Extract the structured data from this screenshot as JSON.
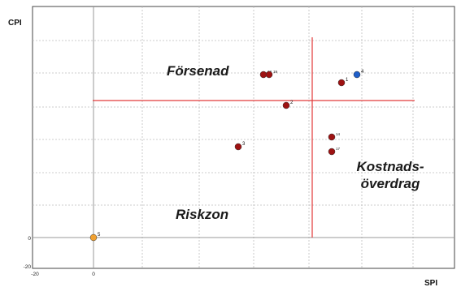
{
  "chart_data": {
    "type": "scatter",
    "xlabel": "SPI",
    "ylabel": "CPI",
    "x_ticks": [
      "-20",
      "0"
    ],
    "y_ticks": [
      "0",
      "-20"
    ],
    "xlim": [
      -20,
      80
    ],
    "ylim": [
      -20,
      65
    ],
    "grid": true,
    "reference_lines": {
      "x": 54,
      "y": 42
    },
    "zones": [
      {
        "label": "Försenad",
        "lines": [
          "Försenad"
        ]
      },
      {
        "label": "Kostnads-överdrag",
        "lines": [
          "Kostnads-",
          "överdrag"
        ]
      },
      {
        "label": "Riskzon",
        "lines": [
          "Riskzon"
        ]
      }
    ],
    "points": [
      {
        "label": "1",
        "x": 62,
        "y": 48,
        "color": "#9e1212"
      },
      {
        "label": "2",
        "x": 48,
        "y": 41,
        "color": "#9e1212"
      },
      {
        "label": "3",
        "x": 36,
        "y": 28,
        "color": "#9e1212"
      },
      {
        "label": "4",
        "x": 66,
        "y": 50.5,
        "color": "#1f5fc9"
      },
      {
        "label": "5",
        "x": 0,
        "y": 0,
        "color": "#f0a030"
      },
      {
        "label": "14",
        "x": 59,
        "y": 31,
        "color": "#9e1212"
      },
      {
        "label": "17",
        "x": 59,
        "y": 26.5,
        "color": "#9e1212"
      },
      {
        "label": "18",
        "x": 42,
        "y": 50,
        "color": "#9e1212"
      },
      {
        "label": "19",
        "x": 43.5,
        "y": 50,
        "color": "#9e1212"
      }
    ],
    "colors": {
      "frame": "#444444",
      "grid": "#bdbdbd",
      "reference": "#e23a3a"
    }
  }
}
